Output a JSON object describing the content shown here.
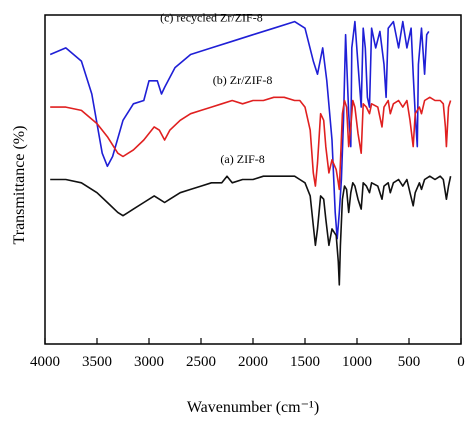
{
  "chart_data": {
    "type": "line",
    "xlabel": "Wavenumber (cm⁻¹)",
    "ylabel": "Transmittance (%)",
    "xlim": [
      4000,
      0
    ],
    "x_ticks": [
      4000,
      3500,
      3000,
      2500,
      2000,
      1500,
      1000,
      500,
      0
    ],
    "grid": false,
    "series": [
      {
        "name": "(c) recycled Zr/ZIF-8",
        "color": "#1f1fd6",
        "points": [
          [
            3950,
            88
          ],
          [
            3800,
            90
          ],
          [
            3650,
            86
          ],
          [
            3550,
            76
          ],
          [
            3450,
            58
          ],
          [
            3400,
            54
          ],
          [
            3350,
            57
          ],
          [
            3250,
            68
          ],
          [
            3150,
            73
          ],
          [
            3050,
            74
          ],
          [
            3000,
            80
          ],
          [
            2920,
            80
          ],
          [
            2880,
            76
          ],
          [
            2850,
            78
          ],
          [
            2750,
            84
          ],
          [
            2600,
            88
          ],
          [
            2400,
            90
          ],
          [
            2200,
            92
          ],
          [
            2000,
            94
          ],
          [
            1800,
            96
          ],
          [
            1600,
            98
          ],
          [
            1500,
            96
          ],
          [
            1420,
            86
          ],
          [
            1380,
            82
          ],
          [
            1330,
            90
          ],
          [
            1290,
            80
          ],
          [
            1240,
            62
          ],
          [
            1210,
            40
          ],
          [
            1190,
            32
          ],
          [
            1170,
            40
          ],
          [
            1150,
            50
          ],
          [
            1130,
            68
          ],
          [
            1110,
            94
          ],
          [
            1080,
            70
          ],
          [
            1060,
            60
          ],
          [
            1050,
            90
          ],
          [
            1020,
            98
          ],
          [
            990,
            85
          ],
          [
            960,
            72
          ],
          [
            940,
            96
          ],
          [
            920,
            90
          ],
          [
            900,
            75
          ],
          [
            880,
            72
          ],
          [
            860,
            96
          ],
          [
            820,
            90
          ],
          [
            780,
            95
          ],
          [
            740,
            85
          ],
          [
            720,
            75
          ],
          [
            700,
            96
          ],
          [
            650,
            98
          ],
          [
            600,
            90
          ],
          [
            560,
            98
          ],
          [
            520,
            90
          ],
          [
            480,
            96
          ],
          [
            460,
            82
          ],
          [
            440,
            70
          ],
          [
            420,
            60
          ],
          [
            410,
            85
          ],
          [
            380,
            96
          ],
          [
            350,
            82
          ],
          [
            330,
            94
          ],
          [
            310,
            95
          ]
        ]
      },
      {
        "name": "(b) Zr/ZIF-8",
        "color": "#e02020",
        "points": [
          [
            3950,
            72
          ],
          [
            3800,
            72
          ],
          [
            3650,
            71
          ],
          [
            3500,
            67
          ],
          [
            3400,
            63
          ],
          [
            3300,
            58
          ],
          [
            3250,
            57
          ],
          [
            3150,
            59
          ],
          [
            3050,
            62
          ],
          [
            2950,
            66
          ],
          [
            2900,
            65
          ],
          [
            2850,
            62
          ],
          [
            2800,
            65
          ],
          [
            2700,
            68
          ],
          [
            2600,
            70
          ],
          [
            2500,
            71
          ],
          [
            2400,
            72
          ],
          [
            2300,
            73
          ],
          [
            2200,
            74
          ],
          [
            2100,
            73
          ],
          [
            2000,
            74
          ],
          [
            1900,
            74
          ],
          [
            1800,
            75
          ],
          [
            1700,
            75
          ],
          [
            1600,
            74
          ],
          [
            1550,
            74
          ],
          [
            1500,
            72
          ],
          [
            1450,
            65
          ],
          [
            1420,
            52
          ],
          [
            1400,
            48
          ],
          [
            1380,
            55
          ],
          [
            1350,
            70
          ],
          [
            1320,
            68
          ],
          [
            1300,
            60
          ],
          [
            1270,
            52
          ],
          [
            1240,
            56
          ],
          [
            1200,
            53
          ],
          [
            1180,
            49
          ],
          [
            1170,
            47
          ],
          [
            1160,
            55
          ],
          [
            1140,
            70
          ],
          [
            1120,
            74
          ],
          [
            1100,
            72
          ],
          [
            1080,
            60
          ],
          [
            1060,
            66
          ],
          [
            1040,
            74
          ],
          [
            1020,
            72
          ],
          [
            990,
            64
          ],
          [
            960,
            58
          ],
          [
            940,
            73
          ],
          [
            910,
            72
          ],
          [
            880,
            70
          ],
          [
            860,
            73
          ],
          [
            800,
            72
          ],
          [
            760,
            66
          ],
          [
            740,
            72
          ],
          [
            700,
            74
          ],
          [
            680,
            70
          ],
          [
            650,
            73
          ],
          [
            600,
            74
          ],
          [
            560,
            72
          ],
          [
            520,
            74
          ],
          [
            490,
            68
          ],
          [
            460,
            60
          ],
          [
            440,
            70
          ],
          [
            400,
            72
          ],
          [
            380,
            70
          ],
          [
            350,
            74
          ],
          [
            300,
            75
          ],
          [
            250,
            74
          ],
          [
            200,
            74
          ],
          [
            170,
            73
          ],
          [
            150,
            66
          ],
          [
            140,
            60
          ],
          [
            120,
            72
          ],
          [
            100,
            74
          ]
        ]
      },
      {
        "name": "(a) ZIF-8",
        "color": "#111111",
        "points": [
          [
            3950,
            50
          ],
          [
            3800,
            50
          ],
          [
            3650,
            49
          ],
          [
            3500,
            46
          ],
          [
            3400,
            43
          ],
          [
            3300,
            40
          ],
          [
            3250,
            39
          ],
          [
            3150,
            41
          ],
          [
            3050,
            43
          ],
          [
            2950,
            45
          ],
          [
            2900,
            44
          ],
          [
            2850,
            43
          ],
          [
            2800,
            44
          ],
          [
            2700,
            46
          ],
          [
            2600,
            47
          ],
          [
            2500,
            48
          ],
          [
            2400,
            49
          ],
          [
            2300,
            49
          ],
          [
            2250,
            51
          ],
          [
            2200,
            49
          ],
          [
            2100,
            50
          ],
          [
            2000,
            50
          ],
          [
            1900,
            51
          ],
          [
            1800,
            51
          ],
          [
            1700,
            51
          ],
          [
            1600,
            51
          ],
          [
            1550,
            50
          ],
          [
            1500,
            49
          ],
          [
            1450,
            45
          ],
          [
            1420,
            36
          ],
          [
            1400,
            30
          ],
          [
            1380,
            35
          ],
          [
            1350,
            45
          ],
          [
            1320,
            44
          ],
          [
            1300,
            38
          ],
          [
            1270,
            30
          ],
          [
            1240,
            35
          ],
          [
            1200,
            33
          ],
          [
            1180,
            25
          ],
          [
            1170,
            18
          ],
          [
            1160,
            30
          ],
          [
            1140,
            44
          ],
          [
            1120,
            48
          ],
          [
            1100,
            47
          ],
          [
            1080,
            40
          ],
          [
            1060,
            46
          ],
          [
            1040,
            49
          ],
          [
            1020,
            48
          ],
          [
            990,
            44
          ],
          [
            960,
            41
          ],
          [
            940,
            49
          ],
          [
            910,
            48
          ],
          [
            880,
            46
          ],
          [
            860,
            49
          ],
          [
            800,
            48
          ],
          [
            760,
            44
          ],
          [
            740,
            48
          ],
          [
            700,
            49
          ],
          [
            680,
            46
          ],
          [
            650,
            49
          ],
          [
            600,
            50
          ],
          [
            560,
            48
          ],
          [
            520,
            50
          ],
          [
            490,
            46
          ],
          [
            460,
            42
          ],
          [
            440,
            46
          ],
          [
            400,
            49
          ],
          [
            380,
            47
          ],
          [
            350,
            50
          ],
          [
            300,
            51
          ],
          [
            250,
            50
          ],
          [
            200,
            51
          ],
          [
            170,
            50
          ],
          [
            150,
            46
          ],
          [
            140,
            44
          ],
          [
            120,
            48
          ],
          [
            100,
            51
          ]
        ]
      }
    ]
  }
}
